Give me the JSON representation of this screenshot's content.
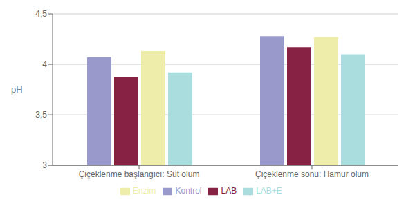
{
  "chart_data": {
    "type": "bar",
    "categories": [
      "Çiçeklenme başlangıcı: Süt olum",
      "Çiçeklenme sonu: Hamur olum"
    ],
    "series": [
      {
        "name": "Kontrol",
        "color": "#9999cc",
        "values": [
          4.07,
          4.28
        ]
      },
      {
        "name": "LAB",
        "color": "#882244",
        "values": [
          3.87,
          4.17
        ]
      },
      {
        "name": "Enzim",
        "color": "#eeeeaa",
        "values": [
          4.13,
          4.27
        ]
      },
      {
        "name": "LAB+E",
        "color": "#aadddd",
        "values": [
          3.92,
          4.1
        ]
      }
    ],
    "ylabel": "pH",
    "ylim": [
      3.0,
      4.5
    ],
    "yticks": [
      3,
      {
        "value": 3.5,
        "label": "3,5"
      },
      4,
      {
        "value": 4.5,
        "label": "4,5"
      }
    ],
    "grid": true,
    "legend": "bottom"
  }
}
